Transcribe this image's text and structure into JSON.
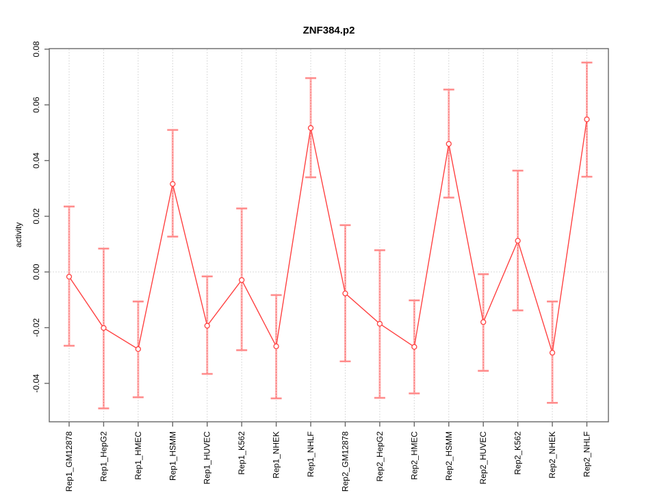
{
  "title": "ZNF384.p2",
  "y_axis": {
    "label": "activity",
    "tick_labels": [
      "-0.04",
      "-0.02",
      "0.00",
      "0.02",
      "0.04",
      "0.06",
      "0.08"
    ],
    "tick_values": [
      -0.04,
      -0.02,
      0.0,
      0.02,
      0.04,
      0.06,
      0.08
    ]
  },
  "chart_data": {
    "type": "line",
    "title": "ZNF384.p2",
    "xlabel": "",
    "ylabel": "activity",
    "categories": [
      "Rep1_GM12878",
      "Rep1_HepG2",
      "Rep1_HMEC",
      "Rep1_HSMM",
      "Rep1_HUVEC",
      "Rep1_K562",
      "Rep1_NHEK",
      "Rep1_NHLF",
      "Rep2_GM12878",
      "Rep2_HepG2",
      "Rep2_HMEC",
      "Rep2_HSMM",
      "Rep2_HUVEC",
      "Rep2_K562",
      "Rep2_NHEK",
      "Rep2_NHLF"
    ],
    "series": [
      {
        "name": "activity",
        "values": [
          -0.0017,
          -0.0201,
          -0.0277,
          0.0316,
          -0.0193,
          -0.0029,
          -0.0267,
          0.0517,
          -0.0077,
          -0.0186,
          -0.0269,
          0.046,
          -0.018,
          0.0112,
          -0.029,
          0.0548
        ],
        "error_low": [
          -0.0265,
          -0.049,
          -0.045,
          0.0127,
          -0.0366,
          -0.0281,
          -0.0454,
          0.034,
          -0.0321,
          -0.0452,
          -0.0436,
          0.0267,
          -0.0355,
          -0.0138,
          -0.047,
          0.0342
        ],
        "error_high": [
          0.0235,
          0.0084,
          -0.0106,
          0.051,
          -0.0016,
          0.0228,
          -0.0083,
          0.0696,
          0.0168,
          0.0078,
          -0.0102,
          0.0655,
          -0.0008,
          0.0364,
          -0.0106,
          0.0752
        ]
      }
    ],
    "ylim": [
      -0.0538,
      0.0802
    ],
    "yticks": [
      -0.04,
      -0.02,
      0.0,
      0.02,
      0.04,
      0.06,
      0.08
    ],
    "grid": "dotted vertical line at every category; dotted horizontal line at y=0",
    "legend": "none",
    "marker": "open-circle",
    "colors": {
      "line": "#ff4040",
      "marker_stroke": "#ff4040",
      "error_bar": "#ffb0b0",
      "error_bar_dotted": "#f25050",
      "error_cap": "#ff8c8c",
      "grid": "#d9d9d9",
      "box": "#666666",
      "text": "#000000",
      "background": "#ffffff"
    }
  }
}
